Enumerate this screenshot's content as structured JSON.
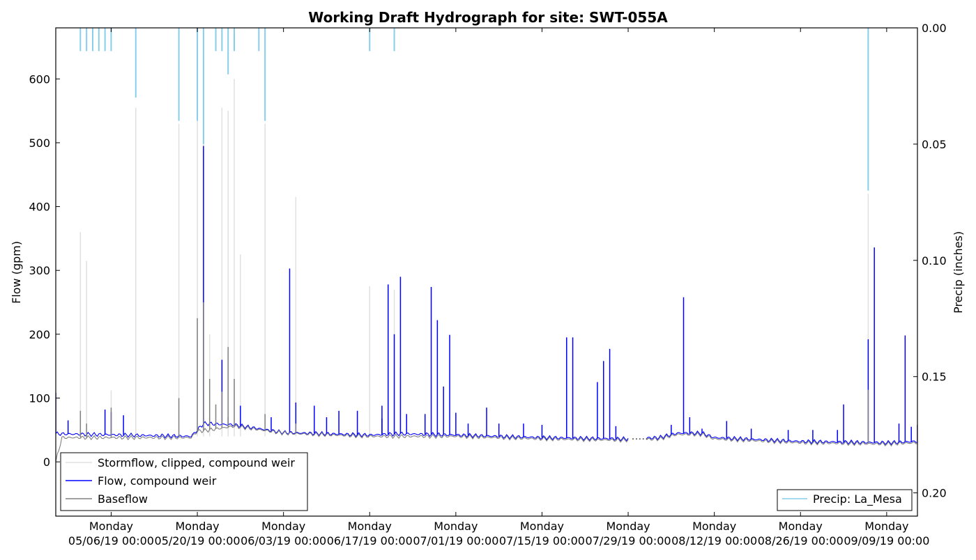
{
  "chart_data": {
    "type": "line",
    "title": "Working Draft Hydrograph for site: SWT-055A",
    "ylabel": "Flow (gpm)",
    "y2label": "Precip (inches)",
    "ylim": [
      -85,
      680
    ],
    "y2lim": [
      0,
      0.21
    ],
    "y2_inverted": true,
    "xlim": [
      "2019-04-27",
      "2019-09-14"
    ],
    "yticks": [
      0,
      100,
      200,
      300,
      400,
      500,
      600
    ],
    "y2ticks": [
      {
        "v": 0.0,
        "label": "0.00"
      },
      {
        "v": 0.05,
        "label": "0.05"
      },
      {
        "v": 0.1,
        "label": "0.10"
      },
      {
        "v": 0.15,
        "label": "0.15"
      },
      {
        "v": 0.2,
        "label": "0.20"
      }
    ],
    "xticks": [
      {
        "date": "2019-05-06",
        "line1": "Monday",
        "line2": "05/06/19 00:00"
      },
      {
        "date": "2019-05-20",
        "line1": "Monday",
        "line2": "05/20/19 00:00"
      },
      {
        "date": "2019-06-03",
        "line1": "Monday",
        "line2": "06/03/19 00:00"
      },
      {
        "date": "2019-06-17",
        "line1": "Monday",
        "line2": "06/17/19 00:00"
      },
      {
        "date": "2019-07-01",
        "line1": "Monday",
        "line2": "07/01/19 00:00"
      },
      {
        "date": "2019-07-15",
        "line1": "Monday",
        "line2": "07/15/19 00:00"
      },
      {
        "date": "2019-07-29",
        "line1": "Monday",
        "line2": "07/29/19 00:00"
      },
      {
        "date": "2019-08-12",
        "line1": "Monday",
        "line2": "08/12/19 00:00"
      },
      {
        "date": "2019-08-26",
        "line1": "Monday",
        "line2": "08/26/19 00:00"
      },
      {
        "date": "2019-09-09",
        "line1": "Monday",
        "line2": "09/09/19 00:00"
      }
    ],
    "legend_left": {
      "position": "lower-left",
      "items": [
        {
          "label": "Stormflow, clipped, compound weir",
          "color": "#e0e0e0"
        },
        {
          "label": "Flow, compound weir",
          "color": "#0000ff"
        },
        {
          "label": "Baseflow",
          "color": "#808080"
        }
      ]
    },
    "legend_right": {
      "position": "lower-right",
      "items": [
        {
          "label": "Precip: La_Mesa",
          "color": "#87ceeb"
        }
      ]
    },
    "gap": [
      "2019-07-29",
      "2019-08-01"
    ],
    "series": [
      {
        "name": "Stormflow, clipped, compound weir",
        "color": "#e0e0e0",
        "values": [
          [
            "2019-05-01",
            360
          ],
          [
            "2019-05-02",
            315
          ],
          [
            "2019-05-06",
            112
          ],
          [
            "2019-05-10",
            555
          ],
          [
            "2019-05-17",
            530
          ],
          [
            "2019-05-20",
            640
          ],
          [
            "2019-05-21",
            630
          ],
          [
            "2019-05-22",
            200
          ],
          [
            "2019-05-24",
            555
          ],
          [
            "2019-05-25",
            550
          ],
          [
            "2019-05-26",
            600
          ],
          [
            "2019-05-27",
            325
          ],
          [
            "2019-05-31",
            530
          ],
          [
            "2019-06-05",
            415
          ],
          [
            "2019-06-17",
            275
          ],
          [
            "2019-06-21",
            270
          ],
          [
            "2019-06-22",
            148
          ],
          [
            "2019-09-06",
            420
          ]
        ]
      },
      {
        "name": "Flow, compound weir",
        "color": "#0000ff",
        "base": [
          [
            "2019-04-27",
            44
          ],
          [
            "2019-05-19",
            40
          ],
          [
            "2019-05-21",
            60
          ],
          [
            "2019-05-26",
            58
          ],
          [
            "2019-06-03",
            46
          ],
          [
            "2019-06-17",
            42
          ],
          [
            "2019-06-22",
            44
          ],
          [
            "2019-07-01",
            42
          ],
          [
            "2019-07-15",
            38
          ],
          [
            "2019-07-28",
            36
          ],
          [
            "2019-08-03",
            38
          ],
          [
            "2019-08-06",
            45
          ],
          [
            "2019-08-10",
            45
          ],
          [
            "2019-08-12",
            38
          ],
          [
            "2019-08-26",
            32
          ],
          [
            "2019-09-09",
            30
          ],
          [
            "2019-09-14",
            32
          ]
        ],
        "values": [
          [
            "2019-04-27",
            108
          ],
          [
            "2019-04-29",
            65
          ],
          [
            "2019-05-05",
            82
          ],
          [
            "2019-05-06",
            78
          ],
          [
            "2019-05-08",
            73
          ],
          [
            "2019-05-21",
            495
          ],
          [
            "2019-05-24",
            160
          ],
          [
            "2019-05-25",
            70
          ],
          [
            "2019-05-27",
            88
          ],
          [
            "2019-06-01",
            70
          ],
          [
            "2019-06-04",
            303
          ],
          [
            "2019-06-05",
            93
          ],
          [
            "2019-06-08",
            88
          ],
          [
            "2019-06-10",
            70
          ],
          [
            "2019-06-12",
            80
          ],
          [
            "2019-06-15",
            80
          ],
          [
            "2019-06-19",
            68
          ],
          [
            "2019-06-20",
            72
          ],
          [
            "2019-06-19",
            88
          ],
          [
            "2019-06-20",
            278
          ],
          [
            "2019-06-21",
            200
          ],
          [
            "2019-06-22",
            290
          ],
          [
            "2019-06-23",
            75
          ],
          [
            "2019-06-26",
            75
          ],
          [
            "2019-06-27",
            274
          ],
          [
            "2019-06-28",
            222
          ],
          [
            "2019-06-29",
            118
          ],
          [
            "2019-06-30",
            199
          ],
          [
            "2019-07-01",
            77
          ],
          [
            "2019-07-03",
            60
          ],
          [
            "2019-07-06",
            85
          ],
          [
            "2019-07-08",
            60
          ],
          [
            "2019-07-12",
            60
          ],
          [
            "2019-07-15",
            58
          ],
          [
            "2019-07-19",
            195
          ],
          [
            "2019-07-20",
            195
          ],
          [
            "2019-07-24",
            125
          ],
          [
            "2019-07-25",
            158
          ],
          [
            "2019-07-26",
            177
          ],
          [
            "2019-07-27",
            56
          ],
          [
            "2019-08-05",
            58
          ],
          [
            "2019-08-07",
            258
          ],
          [
            "2019-08-08",
            70
          ],
          [
            "2019-08-10",
            52
          ],
          [
            "2019-08-14",
            64
          ],
          [
            "2019-08-18",
            52
          ],
          [
            "2019-08-24",
            50
          ],
          [
            "2019-08-28",
            50
          ],
          [
            "2019-09-01",
            50
          ],
          [
            "2019-09-02",
            90
          ],
          [
            "2019-09-06",
            192
          ],
          [
            "2019-09-07",
            336
          ],
          [
            "2019-09-11",
            60
          ],
          [
            "2019-09-12",
            198
          ],
          [
            "2019-09-13",
            55
          ],
          [
            "2019-09-14",
            58
          ]
        ]
      },
      {
        "name": "Baseflow",
        "color": "#808080",
        "base": [
          [
            "2019-04-27",
            0
          ],
          [
            "2019-04-28",
            38
          ],
          [
            "2019-05-19",
            38
          ],
          [
            "2019-05-20",
            48
          ],
          [
            "2019-05-22",
            50
          ],
          [
            "2019-05-26",
            56
          ],
          [
            "2019-06-03",
            45
          ],
          [
            "2019-06-17",
            40
          ],
          [
            "2019-06-22",
            40
          ],
          [
            "2019-07-01",
            40
          ],
          [
            "2019-07-15",
            36
          ],
          [
            "2019-07-28",
            34
          ],
          [
            "2019-08-03",
            36
          ],
          [
            "2019-08-06",
            43
          ],
          [
            "2019-08-10",
            43
          ],
          [
            "2019-08-12",
            36
          ],
          [
            "2019-08-26",
            30
          ],
          [
            "2019-09-09",
            28
          ],
          [
            "2019-09-14",
            30
          ]
        ],
        "values": [
          [
            "2019-05-01",
            80
          ],
          [
            "2019-05-02",
            60
          ],
          [
            "2019-05-06",
            85
          ],
          [
            "2019-05-17",
            100
          ],
          [
            "2019-05-20",
            225
          ],
          [
            "2019-05-21",
            250
          ],
          [
            "2019-05-22",
            130
          ],
          [
            "2019-05-23",
            90
          ],
          [
            "2019-05-24",
            110
          ],
          [
            "2019-05-25",
            180
          ],
          [
            "2019-05-26",
            130
          ],
          [
            "2019-05-31",
            75
          ],
          [
            "2019-06-05",
            60
          ],
          [
            "2019-09-06",
            113
          ]
        ]
      },
      {
        "name": "Precip: La_Mesa",
        "color": "#87ceeb",
        "axis": "right",
        "values": [
          [
            "2019-05-01",
            0.01
          ],
          [
            "2019-05-02",
            0.01
          ],
          [
            "2019-05-03",
            0.01
          ],
          [
            "2019-05-04",
            0.01
          ],
          [
            "2019-05-05",
            0.01
          ],
          [
            "2019-05-06",
            0.01
          ],
          [
            "2019-05-10",
            0.03
          ],
          [
            "2019-05-17",
            0.04
          ],
          [
            "2019-05-20",
            0.04
          ],
          [
            "2019-05-21",
            0.05
          ],
          [
            "2019-05-23",
            0.01
          ],
          [
            "2019-05-24",
            0.01
          ],
          [
            "2019-05-25",
            0.02
          ],
          [
            "2019-05-26",
            0.01
          ],
          [
            "2019-05-30",
            0.01
          ],
          [
            "2019-05-31",
            0.04
          ],
          [
            "2019-06-17",
            0.01
          ],
          [
            "2019-06-21",
            0.01
          ],
          [
            "2019-09-06",
            0.07
          ]
        ]
      }
    ]
  }
}
